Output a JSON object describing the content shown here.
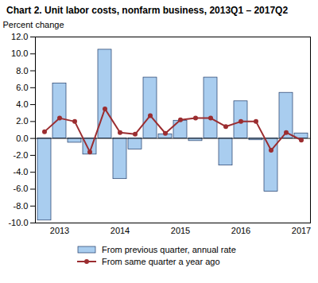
{
  "chart_data": {
    "type": "bar",
    "title": "Chart  2. Unit labor costs, nonfarm business, 2013Q1 – 2017Q2",
    "y_label": "Percent change",
    "categories": [
      null,
      "2013",
      null,
      null,
      null,
      "2014",
      null,
      null,
      null,
      "2015",
      null,
      null,
      null,
      "2016",
      null,
      null,
      null,
      "2017"
    ],
    "series": [
      {
        "name": "From previous quarter, annual rate",
        "type": "bar",
        "color": "#a9cdef",
        "values": [
          -9.7,
          6.5,
          -0.5,
          -1.9,
          10.5,
          -4.8,
          -1.3,
          7.2,
          0.5,
          2.1,
          -0.3,
          7.2,
          -3.2,
          4.4,
          -0.2,
          -6.3,
          5.4,
          0.6
        ]
      },
      {
        "name": "From same quarter a year ago",
        "type": "line",
        "color": "#9b2d30",
        "marker": "circle",
        "values": [
          0.8,
          2.4,
          2.0,
          -1.6,
          3.5,
          0.7,
          0.5,
          2.7,
          0.6,
          2.2,
          2.4,
          2.4,
          1.4,
          2.0,
          2.0,
          -1.4,
          0.7,
          -0.2
        ]
      }
    ],
    "ylim": [
      -10,
      12
    ],
    "yticks": [
      {
        "value": -10,
        "label": "-10.0"
      },
      {
        "value": -8,
        "label": "-8.0"
      },
      {
        "value": -6,
        "label": "-6.0"
      },
      {
        "value": -4,
        "label": "-4.0"
      },
      {
        "value": -2,
        "label": "-2.0"
      },
      {
        "value": 0,
        "label": "0.0"
      },
      {
        "value": 2,
        "label": "2.0"
      },
      {
        "value": 4,
        "label": "4.0"
      },
      {
        "value": 6,
        "label": "6.0"
      },
      {
        "value": 8,
        "label": "8.0"
      },
      {
        "value": 10,
        "label": "10.0"
      },
      {
        "value": 12,
        "label": "12.0"
      }
    ],
    "grid": false,
    "legend": "bottom"
  }
}
